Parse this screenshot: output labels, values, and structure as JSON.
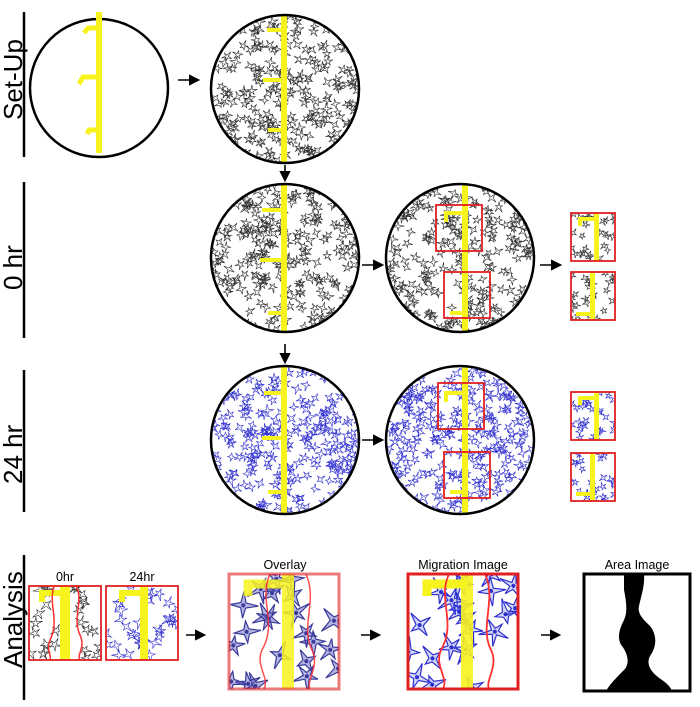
{
  "rows": {
    "setup": "Set-Up",
    "hr0": "0 hr",
    "hr24": "24 hr",
    "analysis": "Analysis"
  },
  "analysis_labels": {
    "t0": "0hr",
    "t24": "24hr",
    "overlay": "Overlay",
    "migration": "Migration Image",
    "area": "Area Image"
  },
  "colors": {
    "marker": "#f7f31e",
    "cells_0hr": "#2f2f2f",
    "cells_24hr": "#2f2fd0",
    "roi_box": "#e02020",
    "migration_line": "#ff3030",
    "area_fill": "#000000"
  },
  "icons": {
    "flow_arrow": "arrow-right-icon",
    "down_arrow": "arrow-down-icon"
  }
}
